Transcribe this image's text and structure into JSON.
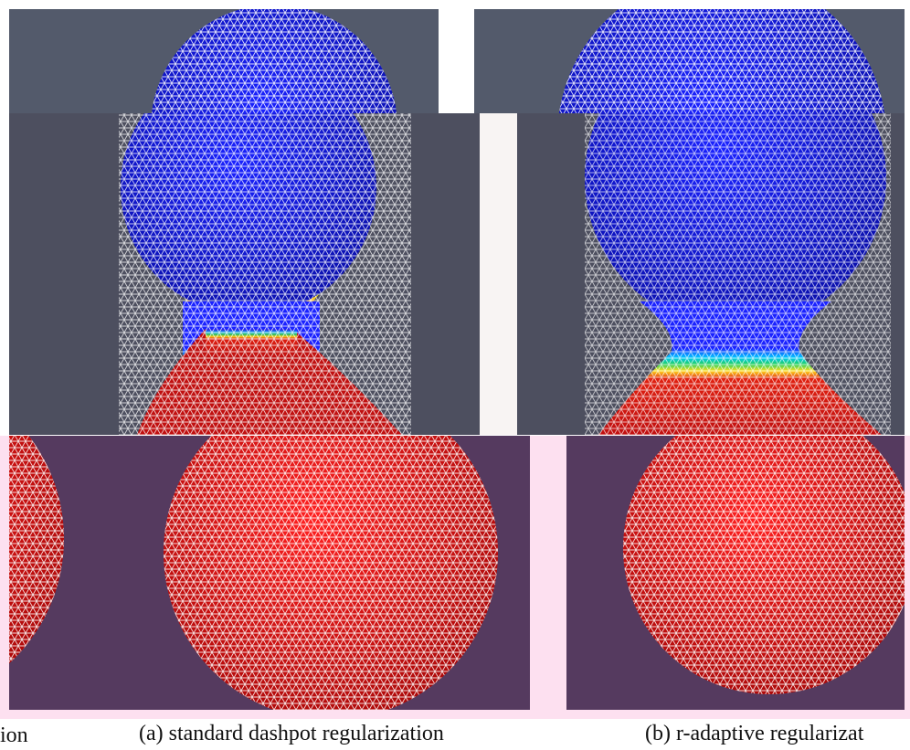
{
  "captions": {
    "left_fragment": "ion",
    "a": "(a) standard dashpot regularization",
    "b": "(b) r-adaptive regularizat"
  }
}
